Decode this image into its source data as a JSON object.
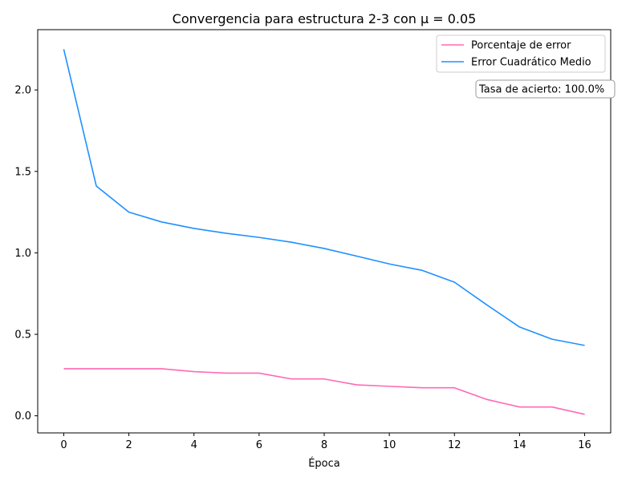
{
  "chart_data": {
    "type": "line",
    "title": "Convergencia para estructura 2-3 con μ = 0.05",
    "xlabel": "Época",
    "ylabel": "",
    "xlim": [
      -0.8,
      16.8
    ],
    "ylim": [
      -0.105,
      2.37
    ],
    "xticks": [
      0,
      2,
      4,
      6,
      8,
      10,
      12,
      14,
      16
    ],
    "xtick_labels": [
      "0",
      "2",
      "4",
      "6",
      "8",
      "10",
      "12",
      "14",
      "16"
    ],
    "yticks": [
      0.0,
      0.5,
      1.0,
      1.5,
      2.0
    ],
    "ytick_labels": [
      "0.0",
      "0.5",
      "1.0",
      "1.5",
      "2.0"
    ],
    "grid": false,
    "legend_position": "top-right",
    "x": [
      0,
      1,
      2,
      3,
      4,
      5,
      6,
      7,
      8,
      9,
      10,
      11,
      12,
      13,
      14,
      15,
      16
    ],
    "series": [
      {
        "name": "Porcentaje de error",
        "color": "#ff69b4",
        "values": [
          0.289,
          0.289,
          0.289,
          0.289,
          0.271,
          0.262,
          0.262,
          0.226,
          0.226,
          0.19,
          0.181,
          0.172,
          0.172,
          0.1,
          0.054,
          0.054,
          0.009
        ]
      },
      {
        "name": "Error Cuadrático Medio",
        "color": "#1e90ff",
        "values": [
          2.25,
          1.41,
          1.25,
          1.19,
          1.15,
          1.12,
          1.095,
          1.065,
          1.027,
          0.98,
          0.932,
          0.893,
          0.82,
          0.68,
          0.545,
          0.47,
          0.432
        ]
      }
    ],
    "annotation": "Tasa de acierto: 100.0%"
  }
}
